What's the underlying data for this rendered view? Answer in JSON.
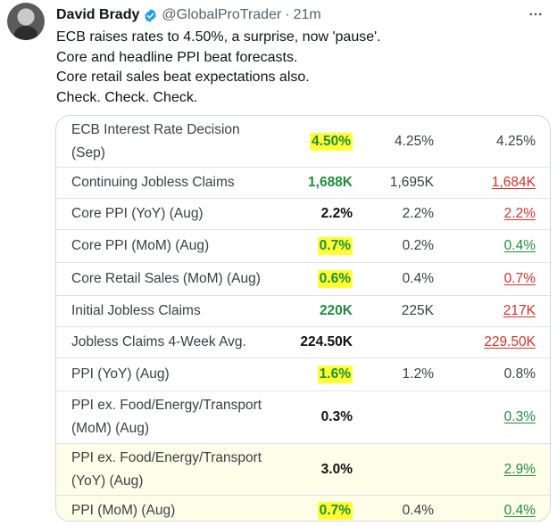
{
  "author": {
    "name": "David Brady",
    "handle": "@GlobalProTrader",
    "separator": "·",
    "time": "21m"
  },
  "tweet_lines": [
    "ECB raises rates to 4.50%, a surprise, now 'pause'.",
    "Core  and headline PPI beat forecasts.",
    "Core retail sales beat expectations also.",
    "Check. Check. Check."
  ],
  "icons": {
    "verified": "verified-badge-icon",
    "more": "more-options-icon",
    "avatar": "avatar-photo"
  },
  "colors": {
    "accent": "#1d9bf0",
    "green": "#1e8e3e",
    "red": "#d93025",
    "highlight": "#ffff33"
  },
  "table": [
    {
      "name_lines": [
        "ECB Interest Rate Decision",
        "(Sep)"
      ],
      "actual": "4.50%",
      "forecast": "4.25%",
      "previous": "4.25%",
      "actual_style": "green",
      "highlight": true,
      "prev_style": "plain",
      "shaded": false
    },
    {
      "name_lines": [
        "Continuing Jobless Claims"
      ],
      "actual": "1,688K",
      "forecast": "1,695K",
      "previous": "1,684K",
      "actual_style": "green",
      "highlight": false,
      "prev_style": "red",
      "shaded": false
    },
    {
      "name_lines": [
        "Core PPI (YoY) (Aug)"
      ],
      "actual": "2.2%",
      "forecast": "2.2%",
      "previous": "2.2%",
      "actual_style": "bold",
      "highlight": false,
      "prev_style": "red",
      "shaded": false
    },
    {
      "name_lines": [
        "Core PPI (MoM) (Aug)"
      ],
      "actual": "0.7%",
      "forecast": "0.2%",
      "previous": "0.4%",
      "actual_style": "green",
      "highlight": true,
      "prev_style": "green",
      "shaded": false
    },
    {
      "name_lines": [
        "Core Retail Sales (MoM) (Aug)"
      ],
      "actual": "0.6%",
      "forecast": "0.4%",
      "previous": "0.7%",
      "actual_style": "green",
      "highlight": true,
      "prev_style": "red",
      "shaded": false
    },
    {
      "name_lines": [
        "Initial Jobless Claims"
      ],
      "actual": "220K",
      "forecast": "225K",
      "previous": "217K",
      "actual_style": "green",
      "highlight": false,
      "prev_style": "red",
      "shaded": false
    },
    {
      "name_lines": [
        "Jobless Claims 4-Week Avg."
      ],
      "actual": "224.50K",
      "forecast": "",
      "previous": "229.50K",
      "actual_style": "bold",
      "highlight": false,
      "prev_style": "red",
      "shaded": false
    },
    {
      "name_lines": [
        "PPI (YoY) (Aug)"
      ],
      "actual": "1.6%",
      "forecast": "1.2%",
      "previous": "0.8%",
      "actual_style": "green",
      "highlight": true,
      "prev_style": "plain",
      "shaded": false
    },
    {
      "name_lines": [
        "PPI ex. Food/Energy/Transport",
        "(MoM) (Aug)"
      ],
      "actual": "0.3%",
      "forecast": "",
      "previous": "0.3%",
      "actual_style": "bold",
      "highlight": false,
      "prev_style": "green",
      "shaded": false
    },
    {
      "name_lines": [
        "PPI ex. Food/Energy/Transport",
        "(YoY) (Aug)"
      ],
      "actual": "3.0%",
      "forecast": "",
      "previous": "2.9%",
      "actual_style": "bold",
      "highlight": false,
      "prev_style": "green",
      "shaded": true
    },
    {
      "name_lines": [
        "PPI (MoM) (Aug)"
      ],
      "actual": "0.7%",
      "forecast": "0.4%",
      "previous": "0.4%",
      "actual_style": "green",
      "highlight": true,
      "prev_style": "green",
      "shaded": true
    }
  ]
}
